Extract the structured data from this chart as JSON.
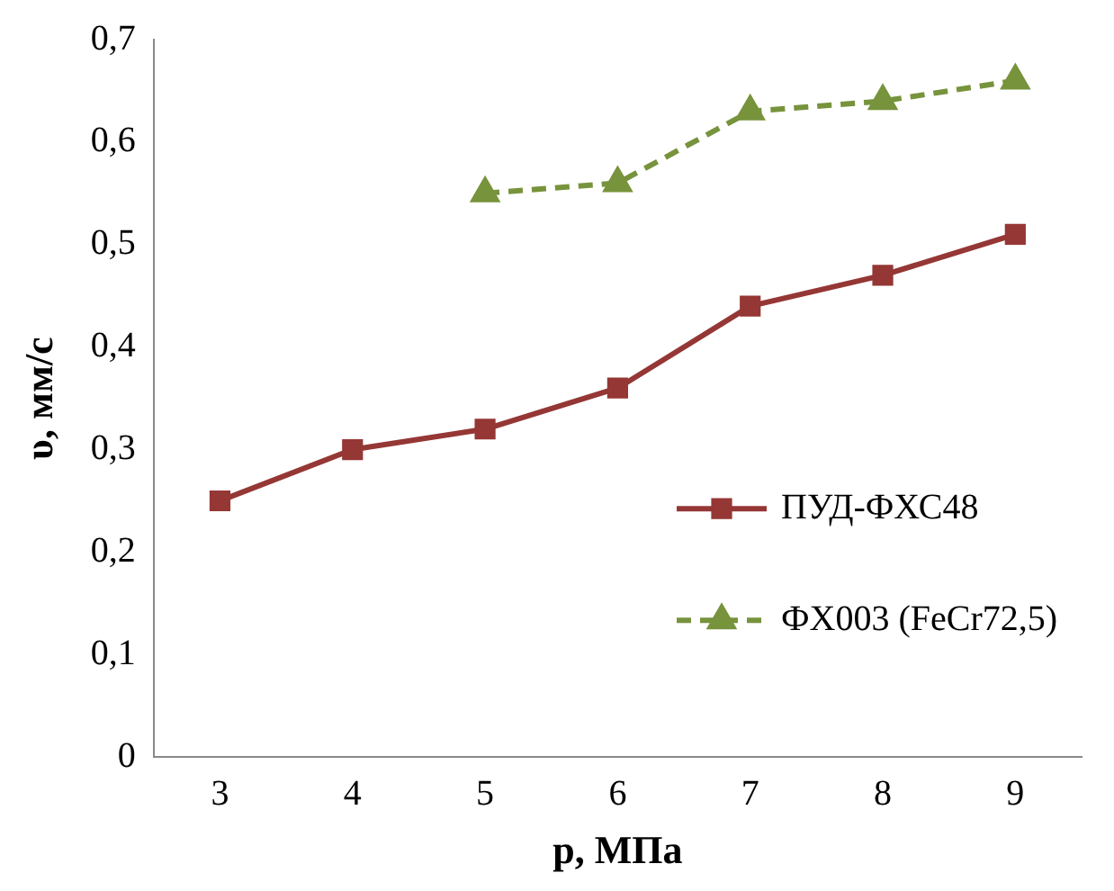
{
  "chart_data": {
    "type": "line",
    "xlabel": "р, МПа",
    "ylabel": "υ, мм/с",
    "categories": [
      "3",
      "4",
      "5",
      "6",
      "7",
      "8",
      "9"
    ],
    "series": [
      {
        "name": "ПУД-ФХС48",
        "color": "#953735",
        "values": [
          0.25,
          0.3,
          0.32,
          0.36,
          0.44,
          0.47,
          0.51
        ],
        "marker": "square",
        "line_style": "solid"
      },
      {
        "name": "ФХ003 (FeCr72,5)",
        "color": "#77933c",
        "values": [
          null,
          null,
          0.55,
          0.56,
          0.63,
          0.64,
          0.66
        ],
        "marker": "triangle",
        "line_style": "dashed"
      }
    ],
    "ylim": [
      0,
      0.7
    ],
    "yticks": [
      0,
      {
        "value": 0.1,
        "label": "0,1"
      },
      {
        "value": 0.2,
        "label": "0,2"
      },
      {
        "value": 0.3,
        "label": "0,3"
      },
      {
        "value": 0.4,
        "label": "0,4"
      },
      {
        "value": 0.5,
        "label": "0,5"
      },
      {
        "value": 0.6,
        "label": "0,6"
      },
      {
        "value": 0.7,
        "label": "0,7"
      }
    ],
    "grid": false,
    "legend": "right"
  }
}
